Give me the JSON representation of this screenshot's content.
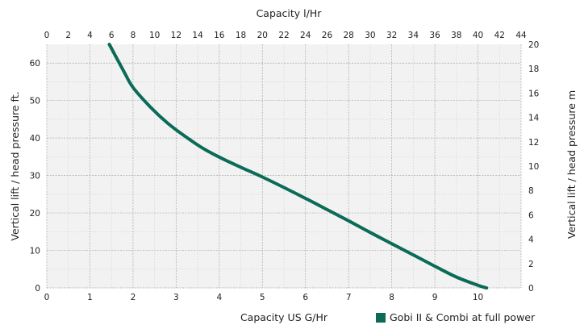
{
  "chart_data": {
    "type": "line",
    "x_axis_bottom": {
      "label": "Capacity US G/Hr",
      "min": 0,
      "max": 11,
      "ticks": [
        "0",
        "1",
        "2",
        "3",
        "4",
        "5",
        "6",
        "7",
        "8",
        "9",
        "10"
      ]
    },
    "x_axis_top": {
      "label": "Capacity l/Hr",
      "min": 0,
      "max": 44,
      "ticks": [
        "0",
        "2",
        "4",
        "6",
        "8",
        "10",
        "12",
        "14",
        "16",
        "18",
        "20",
        "22",
        "24",
        "26",
        "28",
        "30",
        "32",
        "34",
        "36",
        "38",
        "40",
        "42",
        "44"
      ]
    },
    "y_axis_left": {
      "label": "Vertical lift / head pressure ft.",
      "min": 0,
      "max": 65,
      "ticks": [
        "0",
        "10",
        "20",
        "30",
        "40",
        "50",
        "60"
      ]
    },
    "y_axis_right": {
      "label": "Vertical lift / head pressure m",
      "min": 0,
      "max": 20,
      "ticks": [
        "0",
        "2",
        "4",
        "6",
        "8",
        "10",
        "12",
        "14",
        "16",
        "18",
        "20"
      ]
    },
    "grid": true,
    "legend_position": "bottom-right",
    "series": [
      {
        "name": "Gobi II & Combi at full power",
        "color": "#0b6b57",
        "x": [
          1.45,
          1.8,
          2.0,
          2.4,
          2.8,
          3.2,
          3.6,
          4.0,
          4.5,
          5.0,
          5.5,
          6.0,
          6.5,
          7.0,
          7.5,
          8.0,
          8.5,
          9.0,
          9.5,
          10.0,
          10.2
        ],
        "y": [
          65,
          57.5,
          53.5,
          48.3,
          44.0,
          40.5,
          37.4,
          34.9,
          32.2,
          29.6,
          26.8,
          23.9,
          20.9,
          17.9,
          14.8,
          11.8,
          8.8,
          5.8,
          2.9,
          0.7,
          0
        ]
      }
    ]
  }
}
